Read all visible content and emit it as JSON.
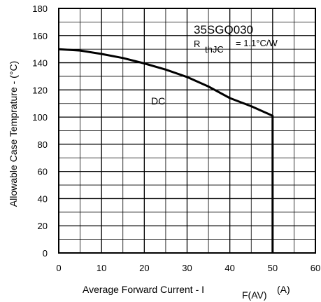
{
  "chart_data": {
    "type": "line",
    "title": "",
    "xlabel": {
      "main": "Average Forward Current  - I",
      "sub": "F(AV)",
      "unit": "(A)"
    },
    "ylabel": "Allowable Case Temprature - (°C)",
    "xlim": [
      0,
      60
    ],
    "ylim": [
      0,
      180
    ],
    "x_ticks": [
      0,
      10,
      20,
      30,
      40,
      50,
      60
    ],
    "y_ticks": [
      0,
      20,
      40,
      60,
      80,
      100,
      120,
      140,
      160,
      180
    ],
    "x_minor_step": 5,
    "y_minor_step": 10,
    "grid": true,
    "annotations": {
      "part": "35SGQ030",
      "rth": {
        "symbol": "R",
        "sub": "thJC",
        "value": "=  1.1°C/W"
      },
      "curve": "DC"
    },
    "series": [
      {
        "x": [
          0,
          5,
          10,
          15,
          20,
          25,
          30,
          35,
          40,
          45,
          50,
          50
        ],
        "y": [
          150,
          149,
          146.5,
          143.5,
          139.5,
          135,
          129.5,
          122.5,
          114,
          108,
          101,
          0
        ]
      }
    ]
  }
}
